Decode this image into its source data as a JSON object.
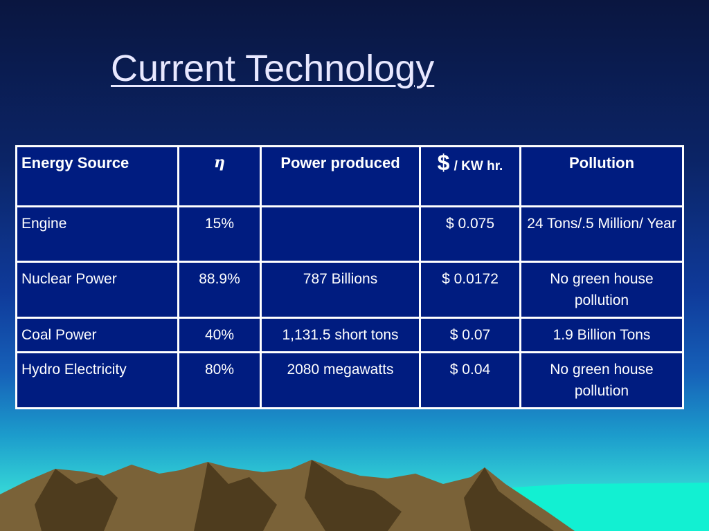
{
  "header": {
    "title": "Current Technology"
  },
  "table": {
    "headers": [
      "Energy Source",
      "η",
      "Power produced",
      {
        "symbol": "$",
        "unit": "/ KW hr."
      },
      "Pollution"
    ],
    "rows": [
      [
        "Engine",
        "15%",
        null,
        "$ 0.075",
        "24 Tons/.5 Million/ Year"
      ],
      [
        "Nuclear Power",
        "88.9%",
        "787 Billions",
        "$ 0.0172",
        "No green house pollution"
      ],
      [
        "Coal Power",
        "40%",
        "1,131.5 short tons",
        "$ 0.07",
        "1.9 Billion Tons"
      ],
      [
        "Hydro Electricity",
        "80%",
        "2080 megawatts",
        "$ 0.04",
        "No green house pollution"
      ]
    ]
  }
}
